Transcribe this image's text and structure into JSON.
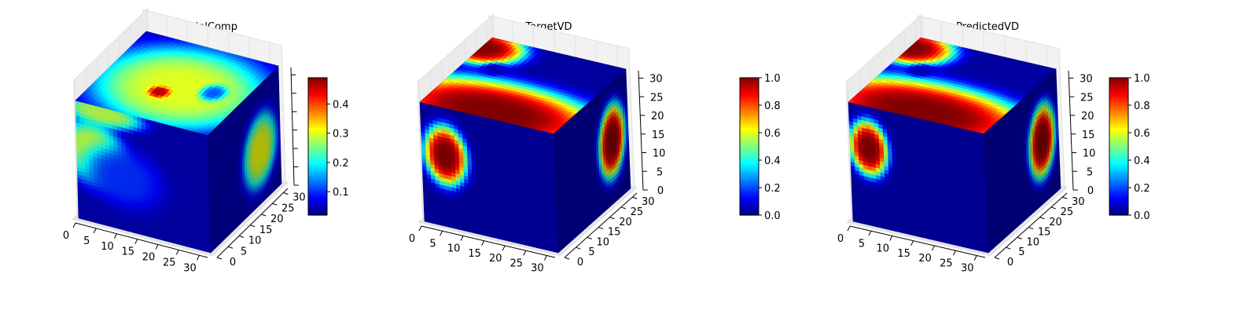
{
  "chart_data": [
    {
      "type": "heatmap",
      "subtype": "3d-voxel",
      "title": "InitialComp",
      "colormap": "jet",
      "axes": {
        "x": {
          "range": [
            0,
            32
          ],
          "ticks": [
            "0",
            "5",
            "10",
            "15",
            "20",
            "25",
            "30"
          ]
        },
        "y": {
          "range": [
            0,
            32
          ],
          "ticks": [
            "0",
            "5",
            "10",
            "15",
            "20",
            "25",
            "30"
          ]
        },
        "z": {
          "range": [
            0,
            32
          ],
          "ticks": []
        }
      },
      "colorbar": {
        "min": 0.02,
        "max": 0.49,
        "ticks": [
          "0.1",
          "0.2",
          "0.3",
          "0.4"
        ]
      },
      "base_value": 0.04,
      "blobs": [
        {
          "face": "top",
          "u": 0.55,
          "v": 0.45,
          "ru": 0.7,
          "rv": 0.6,
          "value": 0.3
        },
        {
          "face": "top",
          "u": 0.45,
          "v": 0.35,
          "ru": 0.08,
          "rv": 0.08,
          "value": 0.47
        },
        {
          "face": "top",
          "u": 0.78,
          "v": 0.5,
          "ru": 0.1,
          "rv": 0.12,
          "value": 0.12
        },
        {
          "face": "front",
          "u": 0.12,
          "v": 0.6,
          "ru": 0.28,
          "rv": 0.3,
          "value": 0.3
        },
        {
          "face": "front",
          "u": 0.2,
          "v": 0.95,
          "ru": 0.35,
          "rv": 0.12,
          "value": 0.28
        },
        {
          "face": "front",
          "u": 0.35,
          "v": 0.45,
          "ru": 0.35,
          "rv": 0.3,
          "value": 0.1
        },
        {
          "face": "side",
          "u": 0.72,
          "v": 0.45,
          "ru": 0.26,
          "rv": 0.34,
          "value": 0.31
        }
      ]
    },
    {
      "type": "heatmap",
      "subtype": "3d-voxel",
      "title": "TargetVD",
      "colormap": "jet",
      "axes": {
        "x": {
          "range": [
            0,
            32
          ],
          "ticks": [
            "0",
            "5",
            "10",
            "15",
            "20",
            "25",
            "30"
          ]
        },
        "y": {
          "range": [
            0,
            32
          ],
          "ticks": [
            "0",
            "5",
            "10",
            "15",
            "20",
            "25",
            "30"
          ]
        },
        "z": {
          "range": [
            0,
            32
          ],
          "ticks": [
            "0",
            "5",
            "10",
            "15",
            "20",
            "25",
            "30"
          ]
        }
      },
      "colorbar": {
        "min": 0.0,
        "max": 1.0,
        "ticks": [
          "0.0",
          "0.2",
          "0.4",
          "0.6",
          "0.8",
          "1.0"
        ]
      },
      "base_value": 0.03,
      "blobs": [
        {
          "face": "top",
          "u": 0.5,
          "v": 0.1,
          "ru": 0.9,
          "rv": 0.45,
          "value": 1.0
        },
        {
          "face": "top",
          "u": 0.0,
          "v": 0.85,
          "ru": 0.35,
          "rv": 0.25,
          "value": 1.0
        },
        {
          "face": "top",
          "u": 0.22,
          "v": 0.62,
          "ru": 0.1,
          "rv": 0.1,
          "value": 0.05
        },
        {
          "face": "front",
          "u": 0.18,
          "v": 0.6,
          "ru": 0.18,
          "rv": 0.28,
          "value": 1.0
        },
        {
          "face": "side",
          "u": 0.78,
          "v": 0.52,
          "ru": 0.2,
          "rv": 0.34,
          "value": 1.0
        }
      ]
    },
    {
      "type": "heatmap",
      "subtype": "3d-voxel",
      "title": "PredictedVD",
      "colormap": "jet",
      "axes": {
        "x": {
          "range": [
            0,
            32
          ],
          "ticks": [
            "0",
            "5",
            "10",
            "15",
            "20",
            "25",
            "30"
          ]
        },
        "y": {
          "range": [
            0,
            32
          ],
          "ticks": [
            "0",
            "5",
            "10",
            "15",
            "20",
            "25",
            "30"
          ]
        },
        "z": {
          "range": [
            0,
            32
          ],
          "ticks": [
            "0",
            "5",
            "10",
            "15",
            "20",
            "25",
            "30"
          ]
        }
      },
      "colorbar": {
        "min": 0.0,
        "max": 1.0,
        "ticks": [
          "0.0",
          "0.2",
          "0.4",
          "0.6",
          "0.8",
          "1.0"
        ]
      },
      "base_value": 0.03,
      "blobs": [
        {
          "face": "top",
          "u": 0.5,
          "v": 0.1,
          "ru": 0.9,
          "rv": 0.45,
          "value": 1.0
        },
        {
          "face": "top",
          "u": 0.0,
          "v": 0.85,
          "ru": 0.35,
          "rv": 0.25,
          "value": 1.0
        },
        {
          "face": "top",
          "u": 0.22,
          "v": 0.6,
          "ru": 0.1,
          "rv": 0.1,
          "value": 0.05
        },
        {
          "face": "front",
          "u": 0.14,
          "v": 0.65,
          "ru": 0.16,
          "rv": 0.26,
          "value": 1.0
        },
        {
          "face": "side",
          "u": 0.78,
          "v": 0.52,
          "ru": 0.2,
          "rv": 0.34,
          "value": 1.0
        }
      ]
    }
  ]
}
